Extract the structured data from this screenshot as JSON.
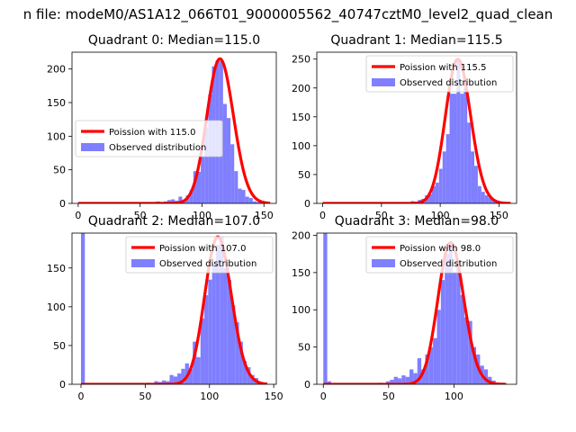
{
  "figure": {
    "suptitle": "n file: modeM0/AS1A12_066T01_9000005562_40747cztM0_level2_quad_clean"
  },
  "chart_data": [
    {
      "type": "bar",
      "title": "Quadrant 0: Median=115.0",
      "xlim": [
        -5,
        160
      ],
      "ylim": [
        0,
        225
      ],
      "xticks": [
        0,
        50,
        100,
        150
      ],
      "yticks": [
        0,
        50,
        100,
        150,
        200
      ],
      "bin_width": 3,
      "legend_position": "center-left",
      "series": [
        {
          "name": "Observed distribution",
          "kind": "histogram",
          "color": "#7f7fff",
          "bins": [
            [
              0,
              2
            ],
            [
              54,
              1
            ],
            [
              57,
              2
            ],
            [
              60,
              1
            ],
            [
              63,
              3
            ],
            [
              66,
              1
            ],
            [
              69,
              3
            ],
            [
              72,
              5
            ],
            [
              75,
              6
            ],
            [
              78,
              4
            ],
            [
              81,
              10
            ],
            [
              84,
              5
            ],
            [
              87,
              12
            ],
            [
              90,
              20
            ],
            [
              93,
              48
            ],
            [
              96,
              47
            ],
            [
              99,
              70
            ],
            [
              102,
              113
            ],
            [
              105,
              162
            ],
            [
              108,
              204
            ],
            [
              111,
              213
            ],
            [
              114,
              212
            ],
            [
              117,
              148
            ],
            [
              120,
              127
            ],
            [
              123,
              88
            ],
            [
              126,
              48
            ],
            [
              129,
              22
            ],
            [
              132,
              20
            ],
            [
              135,
              10
            ],
            [
              138,
              8
            ],
            [
              141,
              3
            ],
            [
              144,
              2
            ],
            [
              147,
              1
            ]
          ]
        },
        {
          "name": "Poission with 115.0",
          "kind": "poisson",
          "lambda": 115.0,
          "peak": 215,
          "range": [
            0,
            155
          ],
          "color": "#ff0000"
        }
      ]
    },
    {
      "type": "bar",
      "title": "Quadrant 1: Median=115.5",
      "xlim": [
        -5,
        165
      ],
      "ylim": [
        0,
        262
      ],
      "xticks": [
        0,
        50,
        100,
        150
      ],
      "yticks": [
        0,
        50,
        100,
        150,
        200,
        250
      ],
      "bin_width": 3,
      "legend_position": "top-right",
      "series": [
        {
          "name": "Observed distribution",
          "kind": "histogram",
          "color": "#7f7fff",
          "bins": [
            [
              0,
              2
            ],
            [
              60,
              1
            ],
            [
              63,
              2
            ],
            [
              66,
              1
            ],
            [
              69,
              2
            ],
            [
              72,
              2
            ],
            [
              75,
              4
            ],
            [
              78,
              3
            ],
            [
              81,
              6
            ],
            [
              84,
              8
            ],
            [
              87,
              14
            ],
            [
              90,
              16
            ],
            [
              93,
              30
            ],
            [
              96,
              36
            ],
            [
              99,
              60
            ],
            [
              102,
              90
            ],
            [
              105,
              120
            ],
            [
              108,
              190
            ],
            [
              111,
              190
            ],
            [
              114,
              250
            ],
            [
              117,
              190
            ],
            [
              120,
              200
            ],
            [
              123,
              140
            ],
            [
              126,
              90
            ],
            [
              129,
              65
            ],
            [
              132,
              30
            ],
            [
              135,
              20
            ],
            [
              138,
              14
            ],
            [
              141,
              10
            ],
            [
              144,
              6
            ],
            [
              147,
              3
            ],
            [
              150,
              1
            ]
          ]
        },
        {
          "name": "Poission with 115.5",
          "kind": "poisson",
          "lambda": 115.5,
          "peak": 250,
          "range": [
            0,
            160
          ],
          "color": "#ff0000"
        }
      ]
    },
    {
      "type": "bar",
      "title": "Quadrant 2: Median=107.0",
      "xlim": [
        -7,
        152
      ],
      "ylim": [
        0,
        195
      ],
      "xticks": [
        0,
        50,
        100,
        150
      ],
      "yticks": [
        0,
        50,
        100,
        150
      ],
      "bin_width": 3,
      "legend_position": "top-right",
      "series": [
        {
          "name": "Observed distribution",
          "kind": "histogram",
          "color": "#7f7fff",
          "bins": [
            [
              0,
              195
            ],
            [
              48,
              1
            ],
            [
              51,
              2
            ],
            [
              54,
              1
            ],
            [
              57,
              4
            ],
            [
              60,
              3
            ],
            [
              63,
              5
            ],
            [
              66,
              4
            ],
            [
              69,
              12
            ],
            [
              72,
              10
            ],
            [
              75,
              14
            ],
            [
              78,
              20
            ],
            [
              81,
              27
            ],
            [
              84,
              20
            ],
            [
              87,
              55
            ],
            [
              90,
              35
            ],
            [
              93,
              85
            ],
            [
              96,
              115
            ],
            [
              99,
              135
            ],
            [
              102,
              155
            ],
            [
              105,
              180
            ],
            [
              108,
              190
            ],
            [
              111,
              150
            ],
            [
              114,
              135
            ],
            [
              117,
              102
            ],
            [
              120,
              80
            ],
            [
              123,
              55
            ],
            [
              126,
              30
            ],
            [
              129,
              22
            ],
            [
              132,
              12
            ],
            [
              135,
              8
            ],
            [
              138,
              3
            ],
            [
              141,
              1
            ]
          ]
        },
        {
          "name": "Poission with 107.0",
          "kind": "poisson",
          "lambda": 107.0,
          "peak": 190,
          "range": [
            0,
            145
          ],
          "color": "#ff0000"
        }
      ]
    },
    {
      "type": "bar",
      "title": "Quadrant 3: Median=98.0",
      "xlim": [
        -5,
        148
      ],
      "ylim": [
        0,
        203
      ],
      "xticks": [
        0,
        50,
        100
      ],
      "yticks": [
        0,
        50,
        100,
        150,
        200
      ],
      "bin_width": 3,
      "legend_position": "top-right",
      "series": [
        {
          "name": "Observed distribution",
          "kind": "histogram",
          "color": "#7f7fff",
          "bins": [
            [
              0,
              203
            ],
            [
              3,
              4
            ],
            [
              42,
              2
            ],
            [
              48,
              4
            ],
            [
              51,
              6
            ],
            [
              54,
              10
            ],
            [
              57,
              8
            ],
            [
              60,
              12
            ],
            [
              63,
              10
            ],
            [
              66,
              20
            ],
            [
              69,
              15
            ],
            [
              72,
              35
            ],
            [
              75,
              20
            ],
            [
              78,
              40
            ],
            [
              81,
              50
            ],
            [
              84,
              62
            ],
            [
              87,
              100
            ],
            [
              90,
              140
            ],
            [
              93,
              175
            ],
            [
              96,
              185
            ],
            [
              99,
              150
            ],
            [
              102,
              165
            ],
            [
              105,
              120
            ],
            [
              108,
              90
            ],
            [
              111,
              85
            ],
            [
              114,
              50
            ],
            [
              117,
              40
            ],
            [
              120,
              25
            ],
            [
              123,
              20
            ],
            [
              126,
              10
            ],
            [
              129,
              5
            ],
            [
              132,
              2
            ],
            [
              135,
              1
            ]
          ]
        },
        {
          "name": "Poission with 98.0",
          "kind": "poisson",
          "lambda": 98.0,
          "peak": 190,
          "range": [
            0,
            140
          ],
          "color": "#ff0000"
        }
      ]
    }
  ]
}
